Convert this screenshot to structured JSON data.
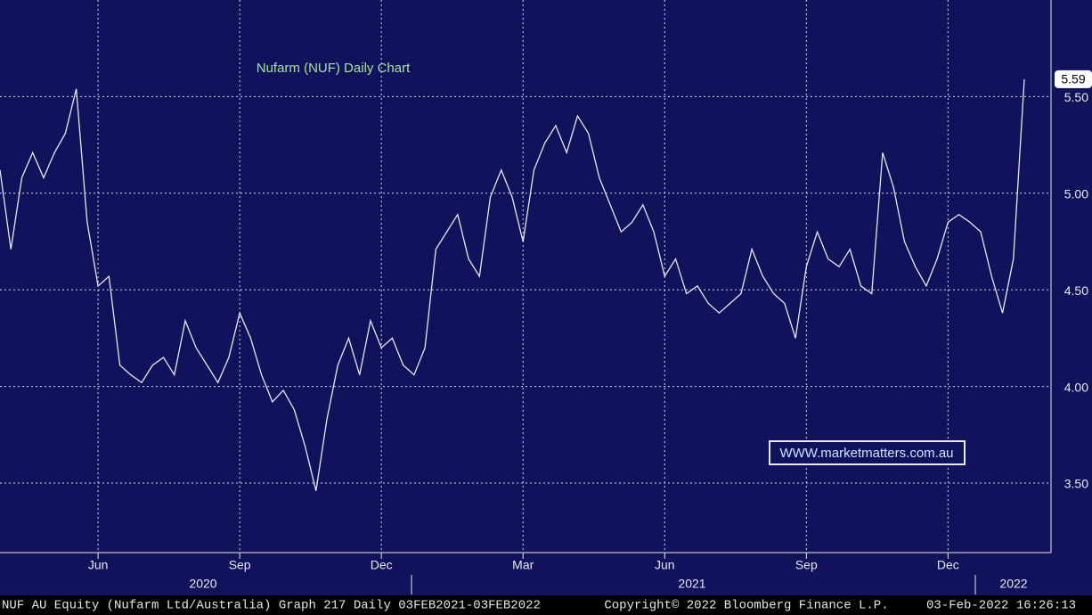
{
  "chart_data": {
    "type": "line",
    "title": "Nufarm (NUF) Daily Chart",
    "watermark": "WWW.marketmatters.com.au",
    "categories": [
      null,
      null,
      null,
      null,
      null,
      null,
      null,
      null,
      null,
      "Jun",
      null,
      null,
      null,
      null,
      null,
      null,
      null,
      null,
      null,
      null,
      null,
      null,
      "Sep",
      null,
      null,
      null,
      null,
      null,
      null,
      null,
      null,
      null,
      null,
      null,
      null,
      "Dec",
      null,
      null,
      null,
      null,
      null,
      null,
      null,
      null,
      null,
      null,
      null,
      null,
      "Mar",
      null,
      null,
      null,
      null,
      null,
      null,
      null,
      null,
      null,
      null,
      null,
      null,
      "Jun",
      null,
      null,
      null,
      null,
      null,
      null,
      null,
      null,
      null,
      null,
      null,
      null,
      "Sep",
      null,
      null,
      null,
      null,
      null,
      null,
      null,
      null,
      null,
      null,
      null,
      null,
      "Dec",
      null,
      null,
      null,
      null,
      null,
      null,
      null
    ],
    "years": [
      "2020",
      "2021",
      "2022"
    ],
    "series": [
      {
        "name": "NUF AU Equity",
        "color": "#e8e8e8",
        "values": [
          5.12,
          4.71,
          5.08,
          5.21,
          5.08,
          5.21,
          5.31,
          5.54,
          4.85,
          4.52,
          4.57,
          4.11,
          4.06,
          4.02,
          4.11,
          4.15,
          4.06,
          4.34,
          4.2,
          4.11,
          4.02,
          4.15,
          4.38,
          4.25,
          4.06,
          3.92,
          3.98,
          3.88,
          3.69,
          3.46,
          3.83,
          4.11,
          4.25,
          4.06,
          4.34,
          4.2,
          4.25,
          4.11,
          4.06,
          4.2,
          4.71,
          4.8,
          4.89,
          4.66,
          4.57,
          4.98,
          5.12,
          4.98,
          4.75,
          5.12,
          5.26,
          5.35,
          5.21,
          5.4,
          5.31,
          5.08,
          4.94,
          4.8,
          4.85,
          4.94,
          4.8,
          4.57,
          4.66,
          4.48,
          4.52,
          4.43,
          4.38,
          4.43,
          4.48,
          4.71,
          4.57,
          4.48,
          4.43,
          4.25,
          4.62,
          4.8,
          4.66,
          4.62,
          4.71,
          4.52,
          4.48,
          5.21,
          5.03,
          4.75,
          4.62,
          4.52,
          4.66,
          4.85,
          4.89,
          4.85,
          4.8,
          4.57,
          4.38,
          4.66,
          5.59
        ]
      }
    ],
    "ylim": [
      3.14,
      6.0
    ],
    "yticks": [
      {
        "value": 3.5,
        "label": "3.50"
      },
      {
        "value": 4.0,
        "label": "4.00"
      },
      {
        "value": 4.5,
        "label": "4.50"
      },
      {
        "value": 5.0,
        "label": "5.00"
      },
      {
        "value": 5.5,
        "label": "5.50"
      }
    ],
    "grid": true,
    "footer": {
      "left": "NUF AU Equity (Nufarm Ltd/Australia) Graph 217  Daily 03FEB2021-03FEB2022",
      "center": "Copyright© 2022 Bloomberg Finance L.P.",
      "right": "03-Feb-2022 16:26:13"
    }
  }
}
